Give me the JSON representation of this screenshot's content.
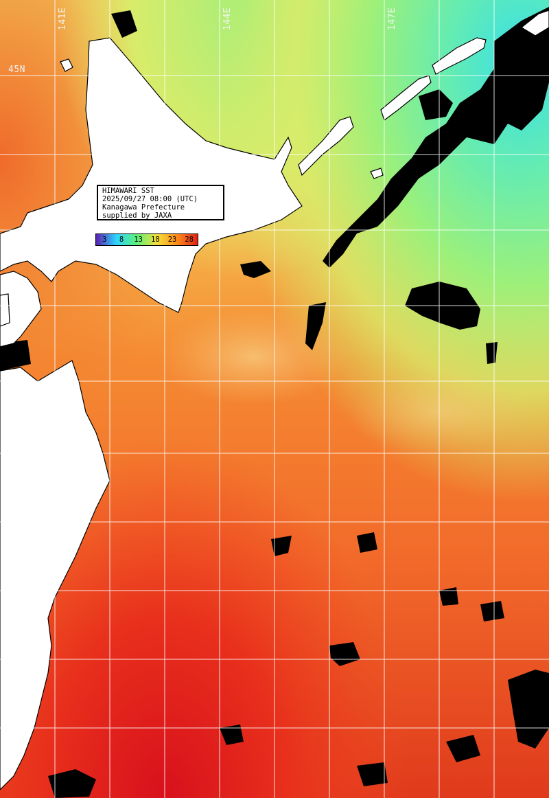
{
  "map": {
    "longitude_labels": [
      "141E",
      "144E",
      "147E"
    ],
    "latitude_labels": [
      "45N"
    ],
    "info_box": {
      "line1": "HIMAWARI SST",
      "line2": "2025/09/27 08:00 (UTC)",
      "line3": "Kanagawa Prefecture",
      "line4": "supplied by JAXA"
    },
    "colorbar": {
      "ticks": [
        "3",
        "8",
        "13",
        "18",
        "23",
        "28"
      ],
      "colors": [
        "#5a1fb0",
        "#2bd6ff",
        "#5cf07a",
        "#f4e03a",
        "#ff8a1a",
        "#e02016"
      ]
    },
    "colors": {
      "land": "#ffffff",
      "cloud_mask": "#000000",
      "grid": "#ffffff",
      "sst_cold": "#45e8d8",
      "sst_cool": "#8ef07a",
      "sst_mild": "#e9e86a",
      "sst_warm": "#f08a3a",
      "sst_hot": "#e23a1c"
    }
  }
}
